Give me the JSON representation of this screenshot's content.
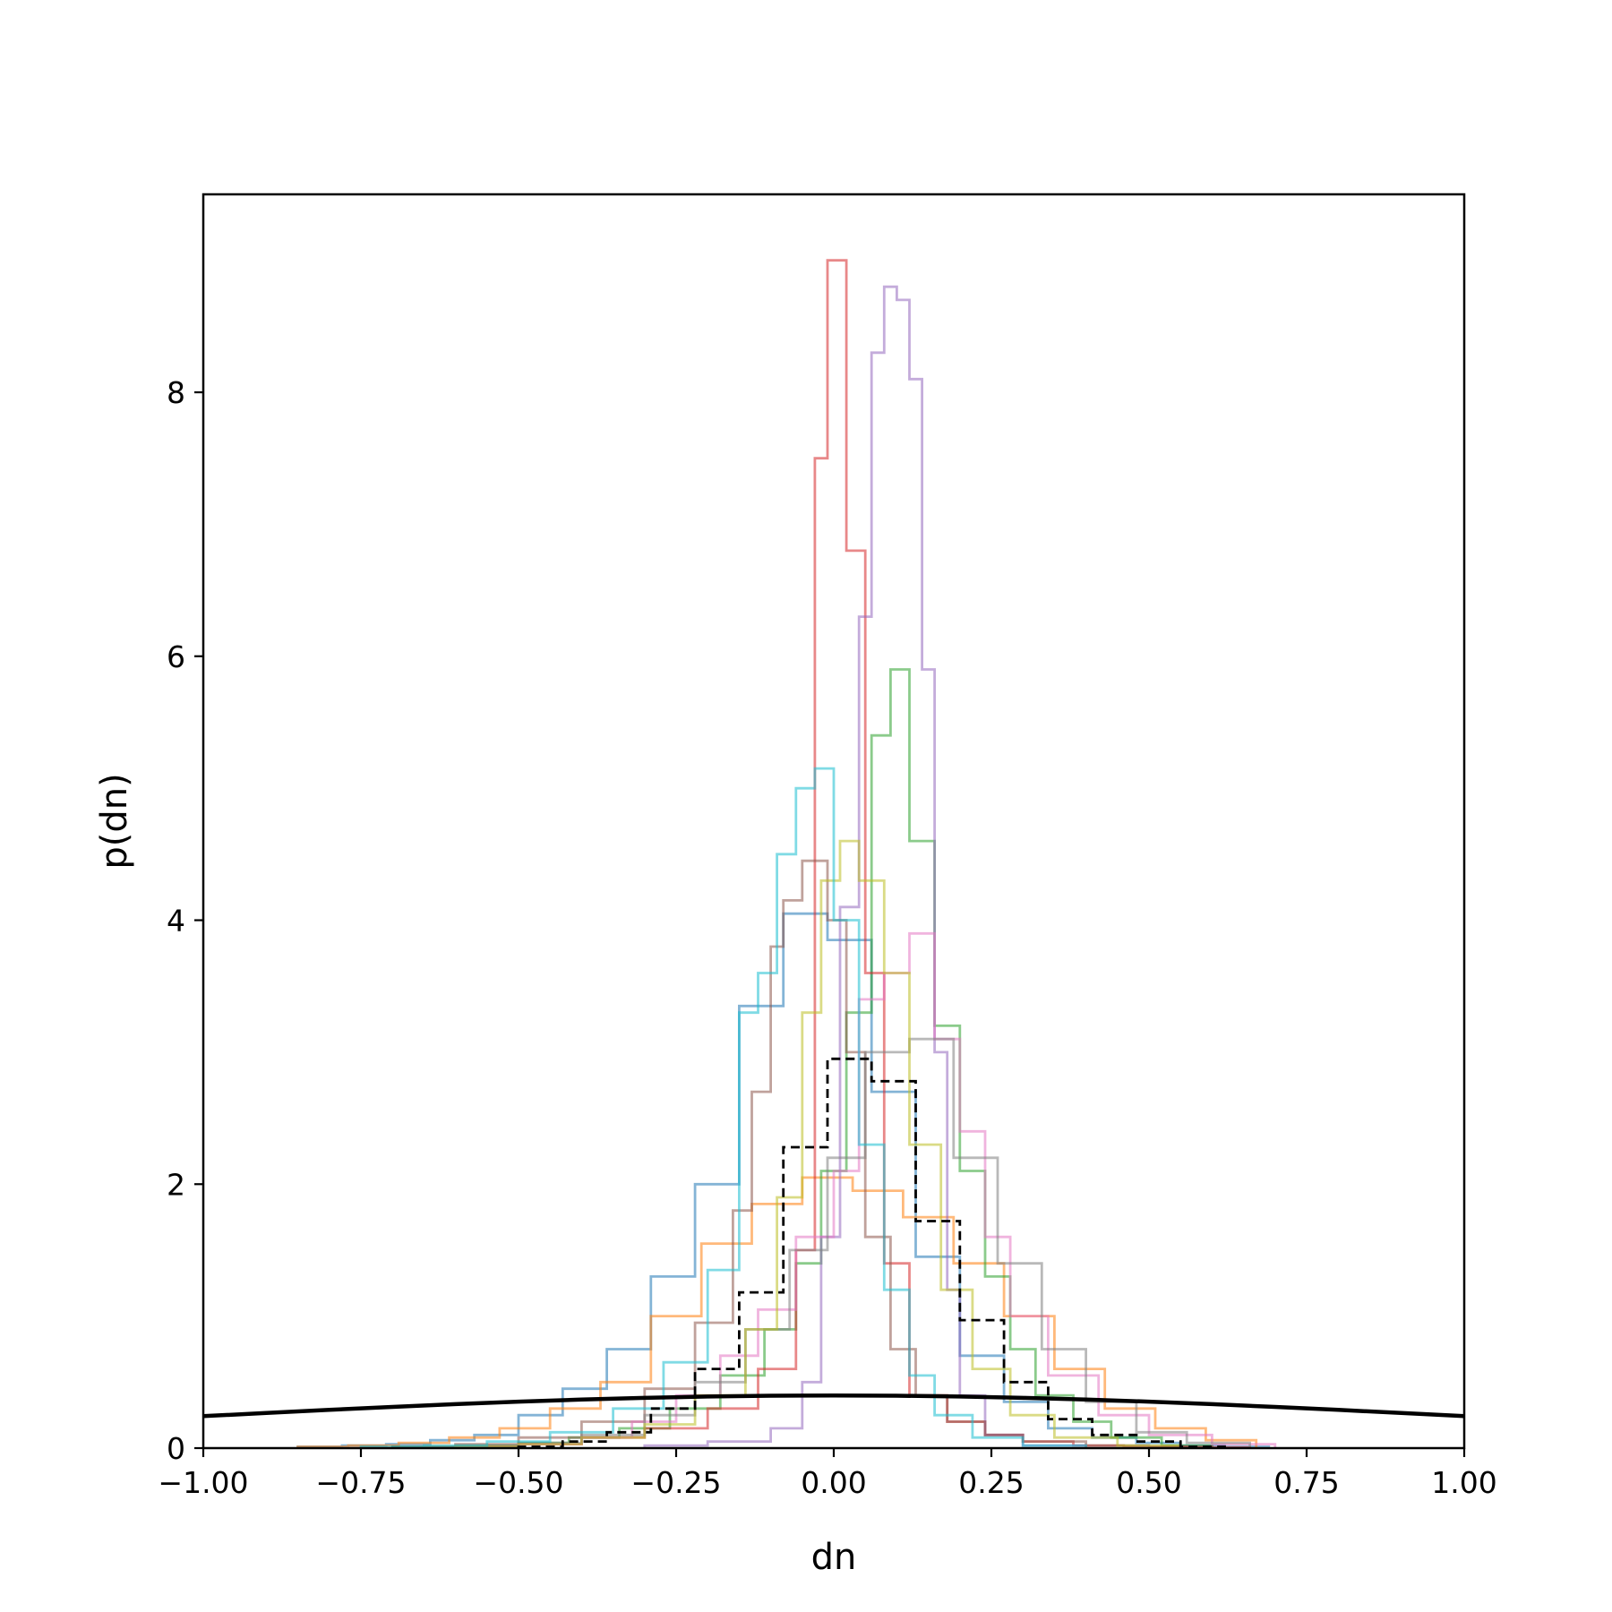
{
  "chart_data": {
    "type": "step-histogram",
    "title": "",
    "xlabel": "dn",
    "ylabel": "p(dn)",
    "xlim": [
      -1.0,
      1.0
    ],
    "ylim": [
      0,
      9.5
    ],
    "xticks": [
      -1.0,
      -0.75,
      -0.5,
      -0.25,
      0.0,
      0.25,
      0.5,
      0.75,
      1.0
    ],
    "xtick_labels": [
      "−1.00",
      "−0.75",
      "−0.50",
      "−0.25",
      "0.00",
      "0.25",
      "0.50",
      "0.75",
      "1.00"
    ],
    "yticks": [
      0,
      2,
      4,
      6,
      8
    ],
    "ytick_labels": [
      "0",
      "2",
      "4",
      "6",
      "8"
    ],
    "grid": false,
    "legend": "none",
    "series": [
      {
        "color": "#1f77b4",
        "style": "step",
        "edges": [
          -0.85,
          -0.78,
          -0.71,
          -0.64,
          -0.57,
          -0.5,
          -0.43,
          -0.36,
          -0.29,
          -0.22,
          -0.15,
          -0.08,
          -0.01,
          0.06,
          0.13,
          0.2,
          0.27,
          0.34,
          0.41,
          0.48,
          0.55,
          0.62,
          0.69
        ],
        "values": [
          0.01,
          0.02,
          0.03,
          0.06,
          0.1,
          0.25,
          0.45,
          0.75,
          1.3,
          2.0,
          3.35,
          4.05,
          3.85,
          2.7,
          1.45,
          0.7,
          0.35,
          0.15,
          0.08,
          0.04,
          0.02,
          0.01
        ]
      },
      {
        "color": "#ff7f0e",
        "style": "step",
        "edges": [
          -0.85,
          -0.77,
          -0.69,
          -0.61,
          -0.53,
          -0.45,
          -0.37,
          -0.29,
          -0.21,
          -0.13,
          -0.05,
          0.03,
          0.11,
          0.19,
          0.27,
          0.35,
          0.43,
          0.51,
          0.59,
          0.67
        ],
        "values": [
          0.01,
          0.02,
          0.04,
          0.08,
          0.15,
          0.3,
          0.5,
          1.0,
          1.55,
          1.85,
          2.05,
          1.95,
          1.75,
          1.4,
          1.0,
          0.6,
          0.3,
          0.15,
          0.06
        ]
      },
      {
        "color": "#2ca02c",
        "style": "step",
        "edges": [
          -0.7,
          -0.6,
          -0.5,
          -0.42,
          -0.34,
          -0.26,
          -0.18,
          -0.11,
          -0.06,
          -0.02,
          0.02,
          0.06,
          0.09,
          0.12,
          0.16,
          0.2,
          0.24,
          0.28,
          0.32,
          0.38,
          0.44,
          0.52,
          0.6
        ],
        "values": [
          0.01,
          0.02,
          0.04,
          0.08,
          0.15,
          0.3,
          0.55,
          0.9,
          1.4,
          2.1,
          3.3,
          5.4,
          5.9,
          4.6,
          3.2,
          2.1,
          1.3,
          0.75,
          0.4,
          0.2,
          0.08,
          0.02
        ]
      },
      {
        "color": "#d62728",
        "style": "step",
        "edges": [
          -0.6,
          -0.5,
          -0.4,
          -0.3,
          -0.2,
          -0.12,
          -0.06,
          -0.03,
          -0.01,
          0.02,
          0.05,
          0.08,
          0.12,
          0.18,
          0.24,
          0.3,
          0.38,
          0.46,
          0.56,
          0.66
        ],
        "values": [
          0.01,
          0.03,
          0.08,
          0.15,
          0.3,
          0.6,
          1.5,
          7.5,
          9.0,
          6.8,
          3.6,
          1.4,
          0.4,
          0.2,
          0.1,
          0.05,
          0.02,
          0.01,
          0.005
        ]
      },
      {
        "color": "#9467bd",
        "style": "step",
        "edges": [
          -0.3,
          -0.2,
          -0.1,
          -0.05,
          -0.02,
          0.01,
          0.04,
          0.06,
          0.08,
          0.1,
          0.12,
          0.14,
          0.16,
          0.18,
          0.2,
          0.24,
          0.3,
          0.4
        ],
        "values": [
          0.02,
          0.05,
          0.15,
          0.5,
          1.6,
          4.1,
          6.3,
          8.3,
          8.8,
          8.7,
          8.1,
          5.9,
          3.0,
          1.2,
          0.4,
          0.1,
          0.02
        ]
      },
      {
        "color": "#8c564b",
        "style": "step",
        "edges": [
          -0.7,
          -0.6,
          -0.5,
          -0.4,
          -0.3,
          -0.22,
          -0.16,
          -0.13,
          -0.1,
          -0.08,
          -0.05,
          -0.01,
          0.02,
          0.05,
          0.09,
          0.13,
          0.18,
          0.24,
          0.3,
          0.4,
          0.5,
          0.6
        ],
        "values": [
          0.01,
          0.03,
          0.08,
          0.2,
          0.45,
          0.95,
          1.8,
          2.7,
          3.8,
          4.15,
          4.45,
          4.0,
          3.0,
          1.6,
          0.75,
          0.4,
          0.2,
          0.1,
          0.05,
          0.02,
          0.01
        ]
      },
      {
        "color": "#e377c2",
        "style": "step",
        "edges": [
          -0.6,
          -0.5,
          -0.4,
          -0.32,
          -0.25,
          -0.18,
          -0.12,
          -0.06,
          0.0,
          0.04,
          0.08,
          0.12,
          0.16,
          0.2,
          0.24,
          0.28,
          0.34,
          0.42,
          0.5,
          0.6,
          0.7
        ],
        "values": [
          0.01,
          0.03,
          0.08,
          0.2,
          0.4,
          0.7,
          1.05,
          1.6,
          2.1,
          3.4,
          3.6,
          3.9,
          3.1,
          2.4,
          1.6,
          1.0,
          0.55,
          0.25,
          0.1,
          0.03
        ]
      },
      {
        "color": "#7f7f7f",
        "style": "step",
        "edges": [
          -0.6,
          -0.5,
          -0.4,
          -0.3,
          -0.22,
          -0.14,
          -0.07,
          -0.01,
          0.05,
          0.12,
          0.19,
          0.26,
          0.33,
          0.4,
          0.48,
          0.56,
          0.66
        ],
        "values": [
          0.01,
          0.04,
          0.1,
          0.25,
          0.5,
          0.9,
          1.5,
          2.2,
          3.0,
          3.1,
          2.2,
          1.4,
          0.75,
          0.35,
          0.12,
          0.04
        ]
      },
      {
        "color": "#bcbd22",
        "style": "step",
        "edges": [
          -0.6,
          -0.5,
          -0.4,
          -0.3,
          -0.22,
          -0.14,
          -0.09,
          -0.05,
          -0.02,
          0.01,
          0.04,
          0.08,
          0.12,
          0.17,
          0.22,
          0.28,
          0.35,
          0.45,
          0.55
        ],
        "values": [
          0.01,
          0.03,
          0.08,
          0.18,
          0.4,
          0.9,
          1.9,
          3.3,
          4.3,
          4.6,
          4.3,
          3.6,
          2.3,
          1.2,
          0.6,
          0.25,
          0.08,
          0.02
        ]
      },
      {
        "color": "#17becf",
        "style": "step",
        "edges": [
          -0.75,
          -0.65,
          -0.55,
          -0.45,
          -0.35,
          -0.27,
          -0.2,
          -0.15,
          -0.12,
          -0.09,
          -0.06,
          -0.03,
          0.0,
          0.04,
          0.08,
          0.12,
          0.16,
          0.22,
          0.3,
          0.4
        ],
        "values": [
          0.01,
          0.02,
          0.05,
          0.12,
          0.3,
          0.65,
          1.35,
          3.3,
          3.6,
          4.5,
          5.0,
          5.15,
          4.0,
          2.3,
          1.2,
          0.55,
          0.25,
          0.08,
          0.02
        ]
      },
      {
        "color": "#000000",
        "style": "dashed-step",
        "edges": [
          -0.5,
          -0.43,
          -0.36,
          -0.29,
          -0.22,
          -0.15,
          -0.08,
          -0.01,
          0.06,
          0.13,
          0.2,
          0.27,
          0.34,
          0.41,
          0.48,
          0.55,
          0.62
        ],
        "values": [
          0.01,
          0.05,
          0.12,
          0.3,
          0.6,
          1.18,
          2.28,
          2.95,
          2.78,
          1.72,
          0.97,
          0.5,
          0.22,
          0.1,
          0.05,
          0.01
        ]
      },
      {
        "color": "#000000",
        "style": "curve",
        "x": [
          -1.0,
          -0.9,
          -0.8,
          -0.7,
          -0.6,
          -0.5,
          -0.4,
          -0.3,
          -0.2,
          -0.1,
          0.0,
          0.1,
          0.2,
          0.3,
          0.4,
          0.5,
          0.6,
          0.7,
          0.8,
          0.9,
          1.0
        ],
        "values": [
          0.242,
          0.266,
          0.29,
          0.312,
          0.333,
          0.352,
          0.368,
          0.381,
          0.391,
          0.397,
          0.399,
          0.397,
          0.391,
          0.381,
          0.368,
          0.352,
          0.333,
          0.312,
          0.29,
          0.266,
          0.242
        ]
      }
    ]
  }
}
